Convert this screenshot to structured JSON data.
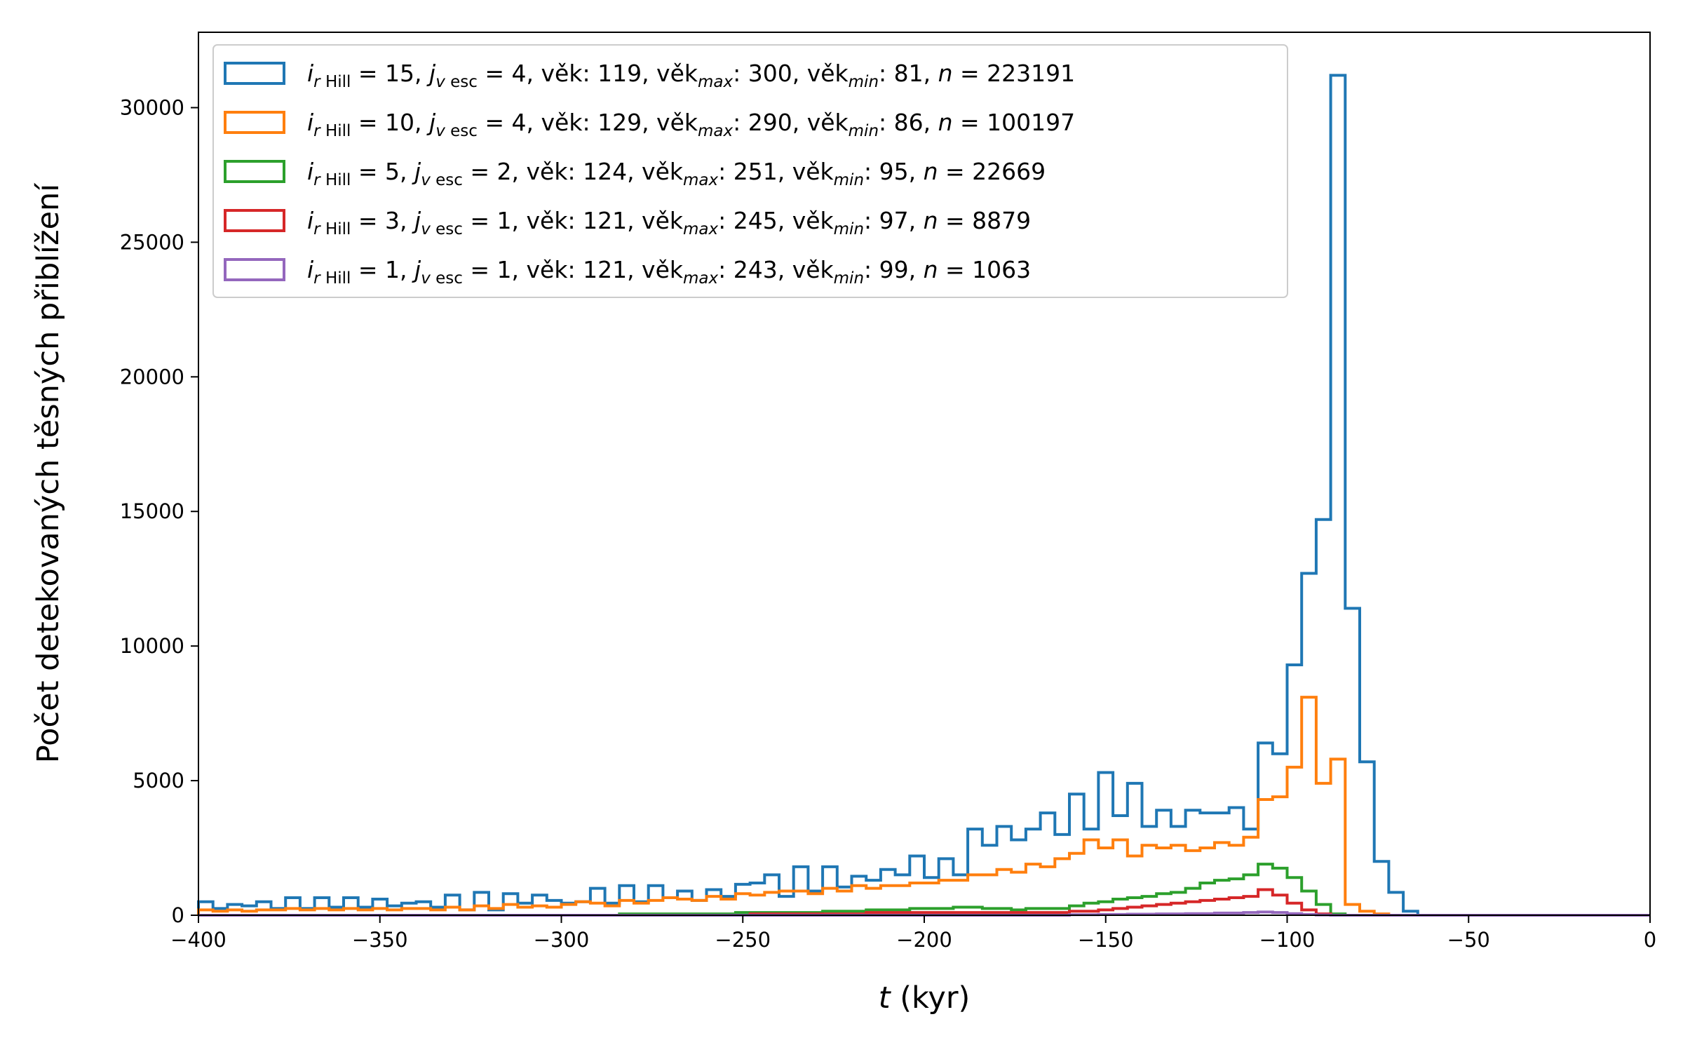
{
  "chart_data": {
    "type": "histogram",
    "xlabel_var": "t",
    "xlabel_unit": " (kyr)",
    "ylabel": "Počet detekovaných těsných přiblížení",
    "xlim": [
      -400,
      0
    ],
    "ylim": [
      0,
      32800
    ],
    "xticks": [
      -400,
      -350,
      -300,
      -250,
      -200,
      -150,
      -100,
      -50,
      0
    ],
    "yticks": [
      0,
      5000,
      10000,
      15000,
      20000,
      25000,
      30000
    ],
    "grid": false,
    "legend_position": "top-left",
    "bin_edges_start": -400,
    "bin_width": 4,
    "bins_count": 100,
    "series": [
      {
        "color": "#1f77b4",
        "legend": {
          "i": "15",
          "j": "4",
          "age": "119",
          "age_max": "300",
          "age_min": "81",
          "n": "223191"
        },
        "values": [
          500,
          250,
          400,
          350,
          500,
          250,
          650,
          250,
          650,
          300,
          650,
          300,
          600,
          350,
          450,
          500,
          300,
          750,
          200,
          850,
          200,
          800,
          450,
          750,
          550,
          450,
          500,
          1000,
          450,
          1100,
          500,
          1100,
          650,
          900,
          550,
          950,
          700,
          1150,
          1200,
          1500,
          700,
          1800,
          900,
          1800,
          1050,
          1450,
          1300,
          1700,
          1500,
          2200,
          1400,
          2100,
          1500,
          3200,
          2600,
          3300,
          2800,
          3200,
          3800,
          3000,
          4500,
          3200,
          5300,
          3700,
          4900,
          3300,
          3900,
          3300,
          3900,
          3800,
          3800,
          4000,
          3200,
          6400,
          6000,
          9300,
          12700,
          14700,
          31200,
          11400,
          5700,
          2000,
          850,
          150,
          0,
          0,
          0,
          0,
          0,
          0,
          0,
          0,
          0,
          0,
          0,
          0,
          0,
          0,
          0,
          0
        ]
      },
      {
        "color": "#ff7f0e",
        "legend": {
          "i": "10",
          "j": "4",
          "age": "129",
          "age_max": "290",
          "age_min": "86",
          "n": "100197"
        },
        "values": [
          200,
          150,
          200,
          150,
          200,
          200,
          250,
          200,
          250,
          200,
          250,
          200,
          250,
          200,
          250,
          250,
          200,
          300,
          200,
          350,
          250,
          400,
          300,
          350,
          300,
          400,
          500,
          450,
          350,
          550,
          450,
          550,
          650,
          600,
          550,
          700,
          600,
          800,
          750,
          850,
          900,
          900,
          800,
          1000,
          900,
          1100,
          1000,
          1100,
          1100,
          1200,
          1200,
          1300,
          1300,
          1500,
          1500,
          1700,
          1600,
          1900,
          1800,
          2100,
          2300,
          2800,
          2500,
          2800,
          2200,
          2600,
          2500,
          2600,
          2400,
          2500,
          2700,
          2600,
          2900,
          4300,
          4400,
          5500,
          8100,
          4900,
          5800,
          400,
          150,
          50,
          0,
          0,
          0,
          0,
          0,
          0,
          0,
          0,
          0,
          0,
          0,
          0,
          0,
          0,
          0,
          0,
          0,
          0
        ]
      },
      {
        "color": "#2ca02c",
        "legend": {
          "i": " 5",
          "j": "2",
          "age": "124",
          "age_max": "251",
          "age_min": "95",
          "n": "22669"
        },
        "values": [
          0,
          0,
          0,
          0,
          0,
          0,
          0,
          0,
          0,
          0,
          0,
          0,
          0,
          0,
          0,
          0,
          0,
          0,
          0,
          0,
          0,
          0,
          0,
          0,
          0,
          0,
          0,
          0,
          0,
          50,
          50,
          50,
          50,
          50,
          50,
          50,
          50,
          100,
          100,
          100,
          100,
          100,
          100,
          150,
          150,
          150,
          200,
          200,
          200,
          250,
          250,
          250,
          300,
          300,
          250,
          250,
          200,
          250,
          250,
          250,
          350,
          450,
          500,
          600,
          650,
          700,
          800,
          850,
          1000,
          1200,
          1300,
          1350,
          1500,
          1900,
          1750,
          1400,
          900,
          400,
          50,
          0,
          0,
          0,
          0,
          0,
          0,
          0,
          0,
          0,
          0,
          0,
          0,
          0,
          0,
          0,
          0,
          0,
          0,
          0,
          0,
          0
        ]
      },
      {
        "color": "#d62728",
        "legend": {
          "i": " 3",
          "j": "1",
          "age": "121",
          "age_max": "245",
          "age_min": "97",
          "n": "8879"
        },
        "values": [
          0,
          0,
          0,
          0,
          0,
          0,
          0,
          0,
          0,
          0,
          0,
          0,
          0,
          0,
          0,
          0,
          0,
          0,
          0,
          0,
          0,
          0,
          0,
          0,
          0,
          0,
          0,
          0,
          0,
          0,
          0,
          0,
          0,
          0,
          0,
          0,
          0,
          0,
          50,
          50,
          50,
          50,
          50,
          50,
          50,
          50,
          100,
          100,
          100,
          100,
          100,
          100,
          100,
          100,
          100,
          100,
          100,
          100,
          100,
          100,
          150,
          150,
          200,
          250,
          300,
          350,
          400,
          450,
          500,
          550,
          600,
          650,
          700,
          950,
          750,
          450,
          200,
          50,
          0,
          0,
          0,
          0,
          0,
          0,
          0,
          0,
          0,
          0,
          0,
          0,
          0,
          0,
          0,
          0,
          0,
          0,
          0,
          0,
          0,
          0
        ]
      },
      {
        "color": "#9467bd",
        "legend": {
          "i": " 1",
          "j": "1",
          "age": "121",
          "age_max": "243",
          "age_min": "99",
          "n": "1063"
        },
        "values": [
          0,
          0,
          0,
          0,
          0,
          0,
          0,
          0,
          0,
          0,
          0,
          0,
          0,
          0,
          0,
          0,
          0,
          0,
          0,
          0,
          0,
          0,
          0,
          0,
          0,
          0,
          0,
          0,
          0,
          0,
          0,
          0,
          0,
          0,
          0,
          0,
          0,
          0,
          0,
          0,
          0,
          0,
          0,
          0,
          0,
          0,
          0,
          0,
          0,
          0,
          0,
          0,
          0,
          0,
          0,
          0,
          0,
          0,
          0,
          0,
          20,
          20,
          30,
          30,
          40,
          40,
          50,
          50,
          60,
          60,
          80,
          80,
          100,
          120,
          100,
          60,
          30,
          10,
          0,
          0,
          0,
          0,
          0,
          0,
          0,
          0,
          0,
          0,
          0,
          0,
          0,
          0,
          0,
          0,
          0,
          0,
          0,
          0,
          0,
          0
        ]
      }
    ]
  }
}
